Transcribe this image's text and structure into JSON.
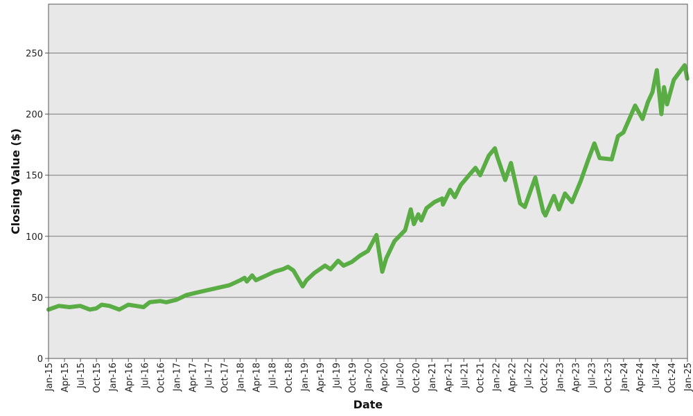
{
  "chart_data": {
    "type": "line",
    "xlabel": "Date",
    "ylabel": "Closing Value ($)",
    "x_range": [
      "2015-01-01",
      "2025-01-01"
    ],
    "ylim": [
      0,
      290
    ],
    "y_ticks": [
      0,
      50,
      100,
      150,
      200,
      250
    ],
    "x_tick_labels": [
      "Jan-15",
      "Apr-15",
      "Jul-15",
      "Oct-15",
      "Jan-16",
      "Apr-16",
      "Jul-16",
      "Oct-16",
      "Jan-17",
      "Apr-17",
      "Jul-17",
      "Oct-17",
      "Jan-18",
      "Apr-18",
      "Jul-18",
      "Oct-18",
      "Jan-19",
      "Apr-19",
      "Jul-19",
      "Oct-19",
      "Jan-20",
      "Apr-20",
      "Jul-20",
      "Oct-20",
      "Jan-21",
      "Apr-21",
      "Jul-21",
      "Oct-21",
      "Jan-22",
      "Apr-22",
      "Jul-22",
      "Oct-22",
      "Jan-23",
      "Apr-23",
      "Jul-23",
      "Oct-23",
      "Jan-24",
      "Apr-24",
      "Jul-24",
      "Oct-24",
      "Jan-25"
    ],
    "grid": "horizontal",
    "colors": {
      "line": "#5aac44",
      "plot_background": "#e8e8e8",
      "gridline": "#7a7a7a"
    },
    "series": [
      {
        "values": [
          {
            "x": "2015-01-01",
            "y": 40
          },
          {
            "x": "2015-03-01",
            "y": 43
          },
          {
            "x": "2015-05-01",
            "y": 42
          },
          {
            "x": "2015-07-01",
            "y": 43
          },
          {
            "x": "2015-08-25",
            "y": 40
          },
          {
            "x": "2015-10-01",
            "y": 41
          },
          {
            "x": "2015-11-01",
            "y": 44
          },
          {
            "x": "2015-12-15",
            "y": 43
          },
          {
            "x": "2016-02-10",
            "y": 40
          },
          {
            "x": "2016-04-01",
            "y": 44
          },
          {
            "x": "2016-05-15",
            "y": 43
          },
          {
            "x": "2016-06-27",
            "y": 42
          },
          {
            "x": "2016-08-01",
            "y": 46
          },
          {
            "x": "2016-10-01",
            "y": 47
          },
          {
            "x": "2016-11-04",
            "y": 46
          },
          {
            "x": "2017-01-01",
            "y": 48
          },
          {
            "x": "2017-03-01",
            "y": 52
          },
          {
            "x": "2017-05-01",
            "y": 54
          },
          {
            "x": "2017-07-01",
            "y": 56
          },
          {
            "x": "2017-09-01",
            "y": 58
          },
          {
            "x": "2017-11-01",
            "y": 60
          },
          {
            "x": "2018-01-01",
            "y": 64
          },
          {
            "x": "2018-01-26",
            "y": 66
          },
          {
            "x": "2018-02-08",
            "y": 63
          },
          {
            "x": "2018-03-10",
            "y": 68
          },
          {
            "x": "2018-04-01",
            "y": 64
          },
          {
            "x": "2018-06-01",
            "y": 68
          },
          {
            "x": "2018-07-15",
            "y": 71
          },
          {
            "x": "2018-09-01",
            "y": 73
          },
          {
            "x": "2018-10-01",
            "y": 75
          },
          {
            "x": "2018-11-01",
            "y": 72
          },
          {
            "x": "2018-12-24",
            "y": 59
          },
          {
            "x": "2019-01-15",
            "y": 64
          },
          {
            "x": "2019-03-01",
            "y": 70
          },
          {
            "x": "2019-05-01",
            "y": 76
          },
          {
            "x": "2019-06-01",
            "y": 73
          },
          {
            "x": "2019-07-15",
            "y": 80
          },
          {
            "x": "2019-08-15",
            "y": 76
          },
          {
            "x": "2019-10-01",
            "y": 79
          },
          {
            "x": "2019-11-15",
            "y": 84
          },
          {
            "x": "2020-01-01",
            "y": 88
          },
          {
            "x": "2020-02-19",
            "y": 101
          },
          {
            "x": "2020-03-23",
            "y": 71
          },
          {
            "x": "2020-04-15",
            "y": 82
          },
          {
            "x": "2020-06-01",
            "y": 96
          },
          {
            "x": "2020-08-01",
            "y": 105
          },
          {
            "x": "2020-09-02",
            "y": 122
          },
          {
            "x": "2020-09-20",
            "y": 110
          },
          {
            "x": "2020-10-15",
            "y": 118
          },
          {
            "x": "2020-11-01",
            "y": 113
          },
          {
            "x": "2020-12-01",
            "y": 123
          },
          {
            "x": "2021-01-15",
            "y": 128
          },
          {
            "x": "2021-03-01",
            "y": 131
          },
          {
            "x": "2021-03-05",
            "y": 126
          },
          {
            "x": "2021-04-15",
            "y": 138
          },
          {
            "x": "2021-05-12",
            "y": 132
          },
          {
            "x": "2021-06-15",
            "y": 142
          },
          {
            "x": "2021-08-01",
            "y": 150
          },
          {
            "x": "2021-09-07",
            "y": 156
          },
          {
            "x": "2021-10-04",
            "y": 150
          },
          {
            "x": "2021-11-22",
            "y": 166
          },
          {
            "x": "2021-12-27",
            "y": 172
          },
          {
            "x": "2022-01-10",
            "y": 165
          },
          {
            "x": "2022-02-24",
            "y": 146
          },
          {
            "x": "2022-03-29",
            "y": 160
          },
          {
            "x": "2022-05-20",
            "y": 127
          },
          {
            "x": "2022-06-16",
            "y": 124
          },
          {
            "x": "2022-08-15",
            "y": 148
          },
          {
            "x": "2022-09-30",
            "y": 120
          },
          {
            "x": "2022-10-12",
            "y": 117
          },
          {
            "x": "2022-11-30",
            "y": 133
          },
          {
            "x": "2022-12-28",
            "y": 122
          },
          {
            "x": "2023-02-01",
            "y": 135
          },
          {
            "x": "2023-03-13",
            "y": 128
          },
          {
            "x": "2023-05-01",
            "y": 145
          },
          {
            "x": "2023-06-15",
            "y": 163
          },
          {
            "x": "2023-07-19",
            "y": 176
          },
          {
            "x": "2023-08-18",
            "y": 164
          },
          {
            "x": "2023-10-26",
            "y": 163
          },
          {
            "x": "2023-12-01",
            "y": 182
          },
          {
            "x": "2024-01-01",
            "y": 185
          },
          {
            "x": "2024-03-08",
            "y": 207
          },
          {
            "x": "2024-04-19",
            "y": 196
          },
          {
            "x": "2024-05-20",
            "y": 210
          },
          {
            "x": "2024-06-15",
            "y": 218
          },
          {
            "x": "2024-07-10",
            "y": 236
          },
          {
            "x": "2024-08-05",
            "y": 200
          },
          {
            "x": "2024-08-20",
            "y": 222
          },
          {
            "x": "2024-09-06",
            "y": 208
          },
          {
            "x": "2024-10-15",
            "y": 228
          },
          {
            "x": "2024-11-15",
            "y": 234
          },
          {
            "x": "2024-12-16",
            "y": 240
          },
          {
            "x": "2024-12-31",
            "y": 229
          }
        ]
      }
    ]
  }
}
